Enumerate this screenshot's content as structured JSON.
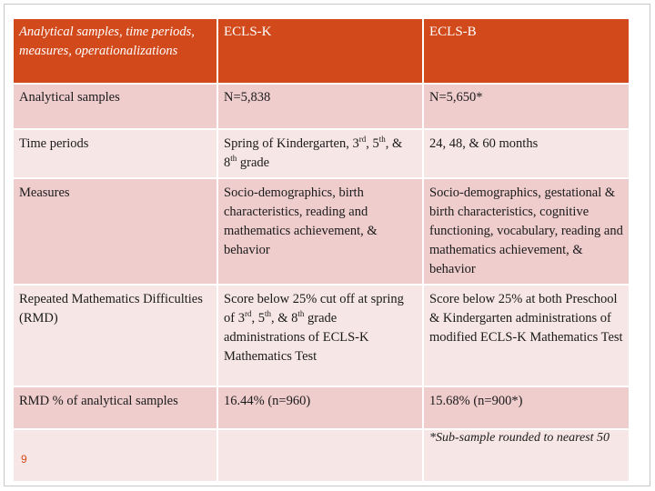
{
  "table": {
    "headers": [
      "Analytical samples, time periods, measures, operationalizations",
      "ECLS-K",
      "ECLS-B"
    ],
    "rows": [
      {
        "label": "Analytical samples",
        "ecls_k": "N=5,838",
        "ecls_b": "N=5,650*"
      },
      {
        "label": "Time periods",
        "ecls_k_parts": [
          "Spring of Kindergarten, 3",
          "rd",
          ", 5",
          "th",
          ", & 8",
          "th",
          " grade"
        ],
        "ecls_b": "24, 48, & 60 months"
      },
      {
        "label": "Measures",
        "ecls_k": "Socio-demographics, birth characteristics, reading and mathematics achievement, & behavior",
        "ecls_b": "Socio-demographics, gestational & birth characteristics, cognitive functioning, vocabulary, reading and mathematics achievement, & behavior"
      },
      {
        "label": "Repeated Mathematics Difficulties (RMD)",
        "ecls_k_parts": [
          "Score below 25% cut off at spring of 3",
          "rd",
          ", 5",
          "th",
          ", & 8",
          "th",
          " grade administrations of ECLS-K Mathematics Test"
        ],
        "ecls_b": "Score below 25% at both Preschool & Kindergarten administrations of modified ECLS-K Mathematics Test"
      },
      {
        "label": "RMD % of analytical samples",
        "ecls_k": "16.44% (n=960)",
        "ecls_b": "15.68% (n=900*)"
      }
    ],
    "footnote": "*Sub-sample rounded to nearest 50"
  },
  "page_number": "9",
  "colors": {
    "header_bg": "#d24a1c",
    "row_dark": "#efcdcd",
    "row_light": "#f7e6e6",
    "page_number": "#d24a1c"
  }
}
